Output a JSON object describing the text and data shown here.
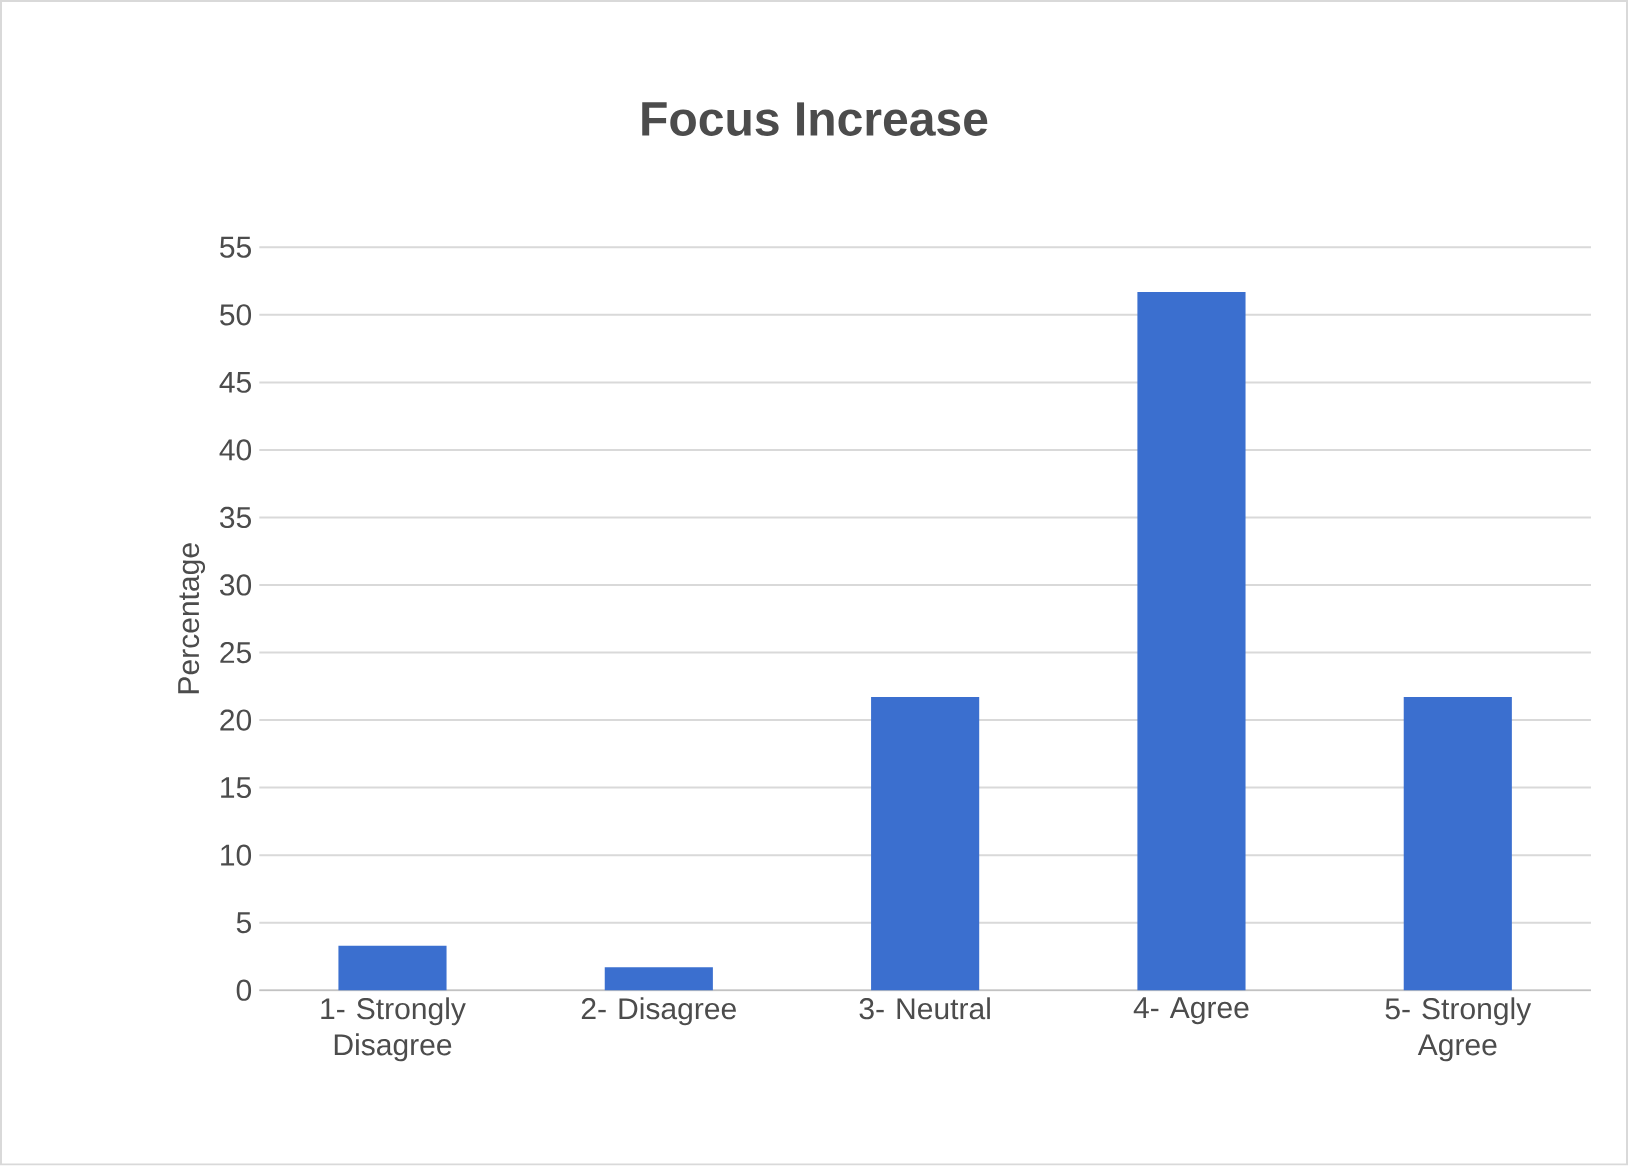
{
  "chart_data": {
    "type": "bar",
    "title": "Focus Increase",
    "ylabel": "Percentage",
    "categories": [
      "1- Strongly Disagree",
      "2- Disagree",
      "3- Neutral",
      "4- Agree",
      "5- Strongly Agree"
    ],
    "values": [
      3.3,
      1.7,
      21.7,
      51.7,
      21.7
    ],
    "color": "#3b6fcf",
    "ylim": [
      0,
      55
    ],
    "yticks": [
      0,
      5,
      10,
      15,
      20,
      25,
      30,
      35,
      40,
      45,
      50,
      55
    ],
    "grid": "y"
  }
}
